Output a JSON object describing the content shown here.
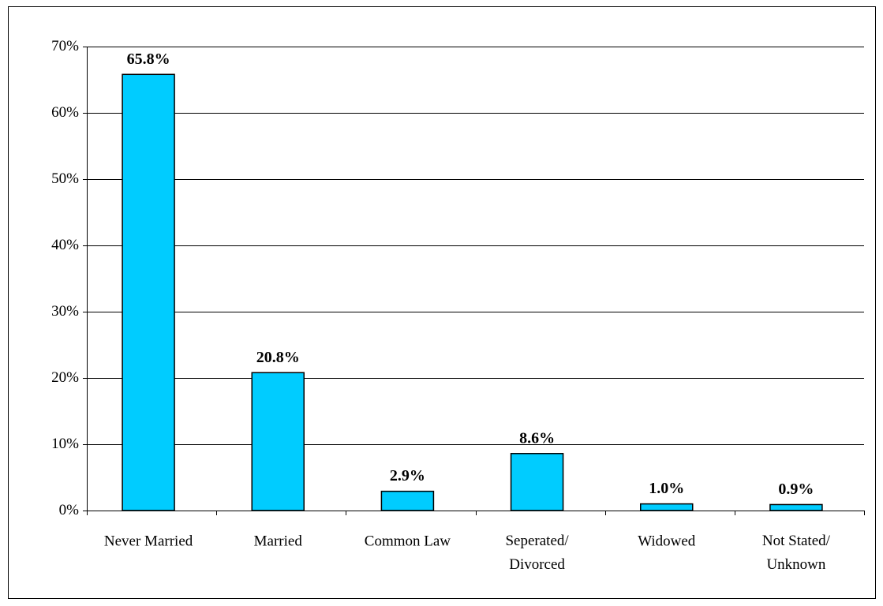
{
  "chart_data": {
    "type": "bar",
    "categories": [
      "Never Married",
      "Married",
      "Common Law",
      "Seperated/\nDivorced",
      "Widowed",
      "Not Stated/\nUnknown"
    ],
    "values": [
      65.8,
      20.8,
      2.9,
      8.6,
      1.0,
      0.9
    ],
    "value_labels": [
      "65.8%",
      "20.8%",
      "2.9%",
      "8.6%",
      "1.0%",
      "0.9%"
    ],
    "color": "#00ccff",
    "ylim": [
      0,
      70
    ],
    "yticks": [
      {
        "value": 0,
        "label": "0%"
      },
      {
        "value": 10,
        "label": "10%"
      },
      {
        "value": 20,
        "label": "20%"
      },
      {
        "value": 30,
        "label": "30%"
      },
      {
        "value": 40,
        "label": "40%"
      },
      {
        "value": 50,
        "label": "50%"
      },
      {
        "value": 60,
        "label": "60%"
      },
      {
        "value": 70,
        "label": "70%"
      }
    ],
    "grid": true
  }
}
